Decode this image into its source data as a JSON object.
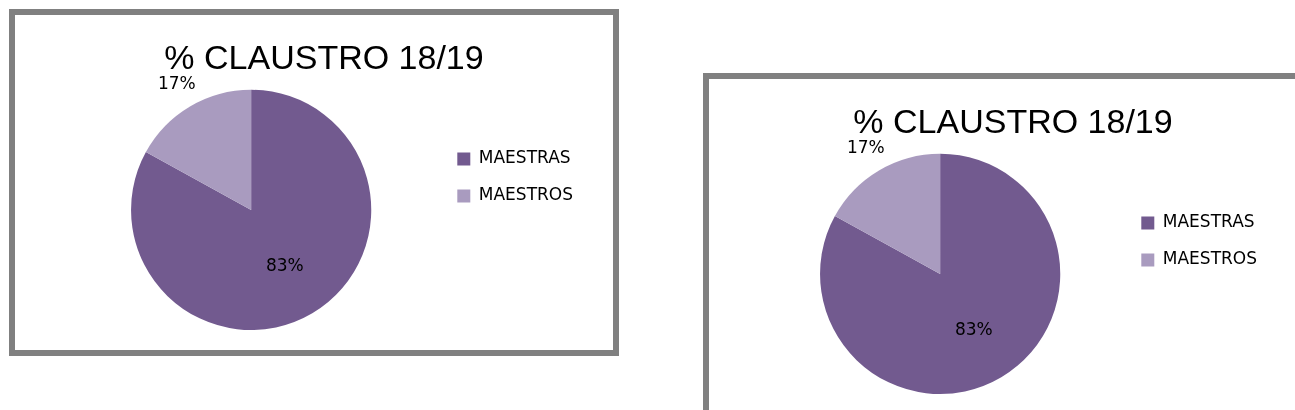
{
  "chart_data": [
    {
      "type": "pie",
      "title": "% CLAUSTRO 18/19",
      "categories": [
        "MAESTRAS",
        "MAESTROS"
      ],
      "values": [
        83,
        17
      ],
      "colors": [
        "#725a8f",
        "#a99bbf"
      ],
      "value_labels": [
        "83%",
        "17%"
      ],
      "legend": "right"
    },
    {
      "type": "pie",
      "title": "% CLAUSTRO 18/19",
      "categories": [
        "MAESTRAS",
        "MAESTROS"
      ],
      "values": [
        83,
        17
      ],
      "colors": [
        "#725a8f",
        "#a99bbf"
      ],
      "value_labels": [
        "83%",
        "17%"
      ],
      "legend": "right"
    }
  ]
}
